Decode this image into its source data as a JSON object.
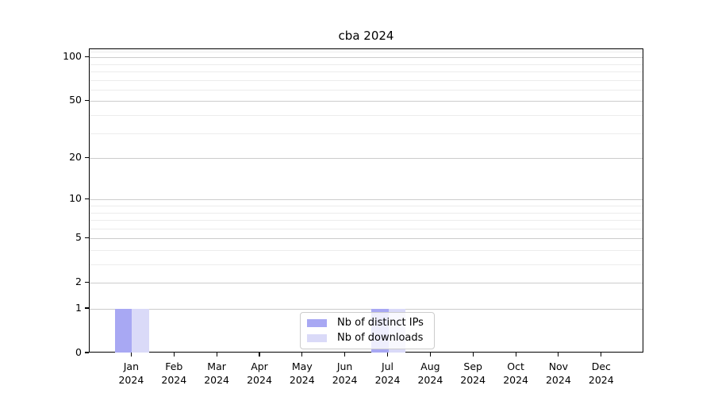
{
  "chart_data": {
    "type": "bar",
    "title": "cba 2024",
    "x_year": "2024",
    "x_months": [
      "Jan",
      "Feb",
      "Mar",
      "Apr",
      "May",
      "Jun",
      "Jul",
      "Aug",
      "Sep",
      "Oct",
      "Nov",
      "Dec"
    ],
    "categories": [
      "Jan 2024",
      "Feb 2024",
      "Mar 2024",
      "Apr 2024",
      "May 2024",
      "Jun 2024",
      "Jul 2024",
      "Aug 2024",
      "Sep 2024",
      "Oct 2024",
      "Nov 2024",
      "Dec 2024"
    ],
    "series": [
      {
        "name": "Nb of distinct IPs",
        "color": "#a8a8f3",
        "values": [
          1,
          0,
          0,
          0,
          0,
          0,
          1,
          0,
          0,
          0,
          0,
          0
        ]
      },
      {
        "name": "Nb of downloads",
        "color": "#dadaf8",
        "values": [
          1,
          0,
          0,
          0,
          0,
          0,
          1,
          0,
          0,
          0,
          0,
          0
        ]
      }
    ],
    "yscale": "symlog",
    "ylim": [
      0,
      113.6
    ],
    "y_major_ticks": [
      0,
      1,
      2,
      5,
      10,
      20,
      50,
      100
    ],
    "y_minor_ticks": [
      3,
      4,
      6,
      7,
      8,
      9,
      30,
      40,
      60,
      70,
      80,
      90,
      110
    ],
    "grid": "horizontal major+minor",
    "legend_position": "lower center inside plot",
    "colors": {
      "bar_distinct_ips": "#a8a8f3",
      "bar_downloads": "#dadaf8",
      "major_grid": "#cccccc",
      "minor_grid": "#ececec",
      "spine": "#000000",
      "legend_border": "#cccccc"
    }
  }
}
